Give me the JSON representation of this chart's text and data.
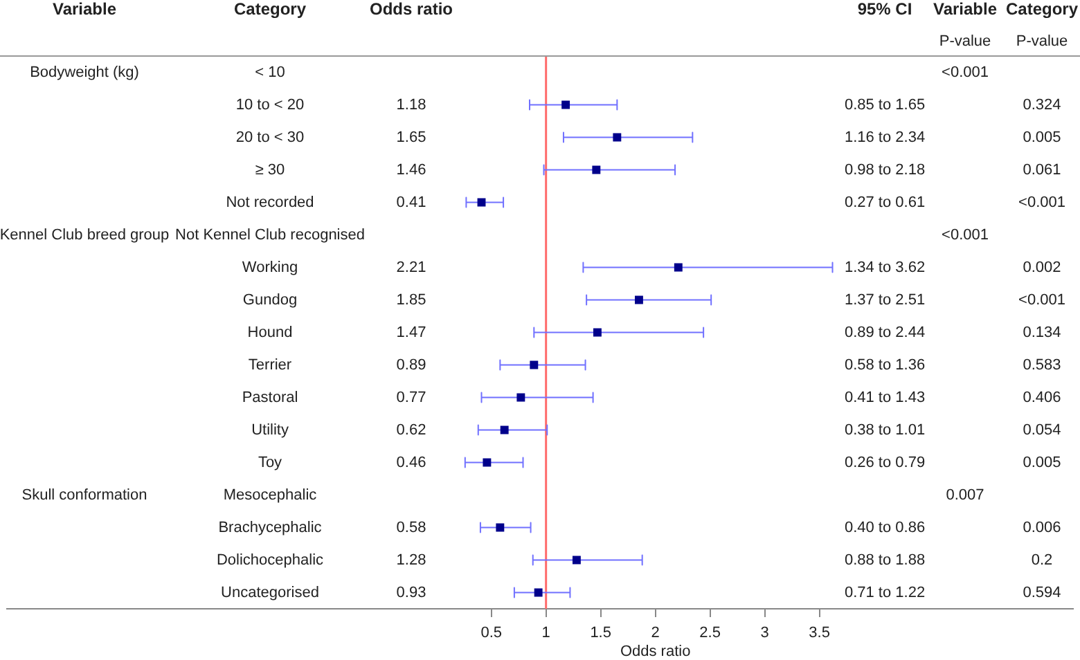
{
  "chart_data": {
    "type": "scatter",
    "orientation": "horizontal",
    "xlabel": "Odds ratio",
    "categories": [
      "< 10",
      "10 to < 20",
      "20 to < 30",
      "≥ 30",
      "Not recorded",
      "Not Kennel Club recognised",
      "Working",
      "Gundog",
      "Hound",
      "Terrier",
      "Pastoral",
      "Utility",
      "Toy",
      "Mesocephalic",
      "Brachycephalic",
      "Dolichocephalic",
      "Uncategorised"
    ],
    "series": [
      {
        "color": "#00008b",
        "values": [
          null,
          1.18,
          1.65,
          1.46,
          0.41,
          null,
          2.21,
          1.85,
          1.47,
          0.89,
          0.77,
          0.62,
          0.46,
          null,
          0.58,
          1.28,
          0.93
        ],
        "errors": [
          null,
          [
            0.85,
            1.65
          ],
          [
            1.16,
            2.34
          ],
          [
            0.98,
            2.18
          ],
          [
            0.27,
            0.61
          ],
          null,
          [
            1.34,
            3.62
          ],
          [
            1.37,
            2.51
          ],
          [
            0.89,
            2.44
          ],
          [
            0.58,
            1.36
          ],
          [
            0.41,
            1.43
          ],
          [
            0.38,
            1.01
          ],
          [
            0.26,
            0.79
          ],
          null,
          [
            0.4,
            0.86
          ],
          [
            0.88,
            1.88
          ],
          [
            0.71,
            1.22
          ]
        ]
      }
    ],
    "xlim": [
      -3.93,
      5.82
    ],
    "xticks": [
      0.5,
      1,
      1.5,
      2,
      2.5,
      3,
      3.5
    ],
    "ref_lines": [
      {
        "axis": "x",
        "value": 1,
        "color": "#ff6b6b"
      }
    ],
    "marker": "square",
    "grid": false,
    "legend": false,
    "annotations": [
      "Variable\n\nBodyweight (kg)\n\n\n\n\nKennel Club breed group\n\n\n\n\n\n\n\nSkull conformation",
      "Category",
      "Odds ratio\n\n\n1.18\n1.65\n1.46\n0.41\n\n2.21\n1.85\n1.47\n0.89\n0.77\n0.62\n0.46\n\n0.58\n1.28\n0.93",
      "95% CI\n\n\n0.85 to 1.65\n1.16 to 2.34\n0.98 to 2.18\n0.27 to 0.61\n\n1.34 to 3.62\n1.37 to 2.51\n0.89 to 2.44\n0.58 to 1.36\n0.41 to 1.43\n0.38 to 1.01\n0.26 to 0.79\n\n0.40 to 0.86\n0.88 to 1.88\n0.71 to 1.22",
      "Variable\nP-value\n<0.001\n\n\n\n\n<0.001\n\n\n\n\n\n\n\n0.007",
      "Category\nP-value\n\n0.324\n0.005\n0.061\n<0.001\n\n0.002\n<0.001\n0.134\n0.583\n0.406\n0.054\n0.005\n\n0.006\n0.2\n0.594"
    ]
  }
}
